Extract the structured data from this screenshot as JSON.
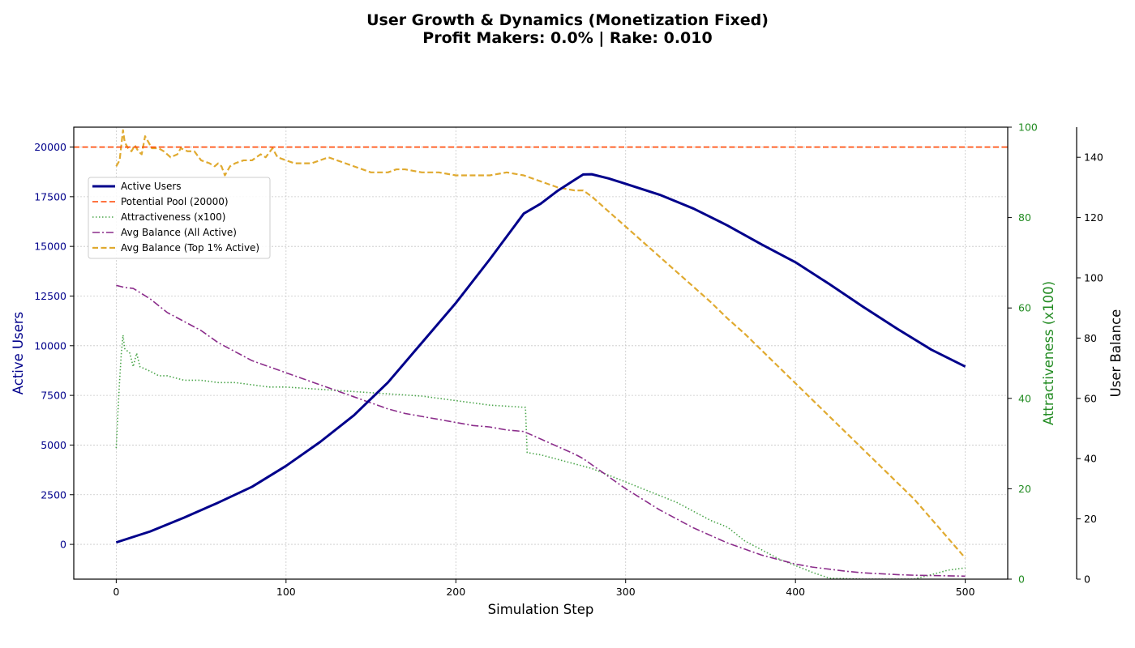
{
  "title_line1": "User Growth & Dynamics (Monetization Fixed)",
  "title_line2": "Profit Makers: 0.0% | Rake: 0.010",
  "chart_data": {
    "type": "line",
    "title": "User Growth & Dynamics (Monetization Fixed)\nProfit Makers: 0.0% | Rake: 0.010",
    "xlabel": "Simulation Step",
    "xlim": [
      -25,
      525
    ],
    "x_ticks": [
      0,
      100,
      200,
      300,
      400,
      500
    ],
    "axes": {
      "left": {
        "label": "Active Users",
        "color": "#00008b",
        "lim": [
          -1750,
          21000
        ],
        "ticks": [
          0,
          2500,
          5000,
          7500,
          10000,
          12500,
          15000,
          17500,
          20000
        ]
      },
      "right1": {
        "label": "Attractiveness (x100)",
        "color": "#228b22",
        "lim": [
          0,
          100
        ],
        "ticks": [
          0,
          20,
          40,
          60,
          80,
          100
        ]
      },
      "right2": {
        "label": "User Balance",
        "color": "#000000",
        "lim": [
          0,
          150
        ],
        "ticks": [
          0,
          20,
          40,
          60,
          80,
          100,
          120,
          140
        ]
      }
    },
    "grid": true,
    "legend_position": "upper-left",
    "series": [
      {
        "name": "Active Users",
        "axis": "left",
        "color": "#00008b",
        "style": "solid",
        "width": 3,
        "points": [
          [
            0,
            100
          ],
          [
            20,
            650
          ],
          [
            40,
            1350
          ],
          [
            60,
            2100
          ],
          [
            80,
            2900
          ],
          [
            100,
            3950
          ],
          [
            120,
            5150
          ],
          [
            140,
            6500
          ],
          [
            160,
            8150
          ],
          [
            180,
            10150
          ],
          [
            200,
            12150
          ],
          [
            220,
            14350
          ],
          [
            240,
            16650
          ],
          [
            250,
            17150
          ],
          [
            260,
            17800
          ],
          [
            270,
            18350
          ],
          [
            275,
            18620
          ],
          [
            280,
            18630
          ],
          [
            290,
            18420
          ],
          [
            300,
            18150
          ],
          [
            320,
            17600
          ],
          [
            340,
            16900
          ],
          [
            360,
            16050
          ],
          [
            380,
            15100
          ],
          [
            400,
            14200
          ],
          [
            420,
            13100
          ],
          [
            440,
            11950
          ],
          [
            460,
            10850
          ],
          [
            480,
            9800
          ],
          [
            500,
            8950
          ]
        ]
      },
      {
        "name": "Potential Pool (20000)",
        "axis": "left",
        "color": "#ff4500",
        "style": "dashed",
        "width": 1.6,
        "points": [
          [
            -25,
            20000
          ],
          [
            525,
            20000
          ]
        ]
      },
      {
        "name": "Attractiveness (x100)",
        "axis": "right1",
        "color": "#4ca64c",
        "style": "dotted",
        "width": 1.6,
        "points": [
          [
            0,
            29
          ],
          [
            1,
            37
          ],
          [
            2,
            44
          ],
          [
            3,
            50
          ],
          [
            4,
            54
          ],
          [
            5,
            51
          ],
          [
            8,
            50
          ],
          [
            10,
            47
          ],
          [
            12,
            50
          ],
          [
            14,
            47
          ],
          [
            20,
            46
          ],
          [
            25,
            45
          ],
          [
            30,
            45
          ],
          [
            40,
            44
          ],
          [
            50,
            44
          ],
          [
            60,
            43.5
          ],
          [
            70,
            43.5
          ],
          [
            80,
            43
          ],
          [
            90,
            42.5
          ],
          [
            100,
            42.5
          ],
          [
            120,
            42
          ],
          [
            140,
            41.5
          ],
          [
            160,
            41
          ],
          [
            180,
            40.5
          ],
          [
            200,
            39.5
          ],
          [
            220,
            38.5
          ],
          [
            241,
            38
          ],
          [
            242,
            28
          ],
          [
            250,
            27.5
          ],
          [
            260,
            26.5
          ],
          [
            270,
            25.5
          ],
          [
            280,
            24.5
          ],
          [
            290,
            23
          ],
          [
            300,
            21.5
          ],
          [
            310,
            20
          ],
          [
            320,
            18.5
          ],
          [
            330,
            17
          ],
          [
            340,
            15
          ],
          [
            350,
            13
          ],
          [
            360,
            11.5
          ],
          [
            370,
            8.5
          ],
          [
            380,
            6.5
          ],
          [
            390,
            4.5
          ],
          [
            400,
            3
          ],
          [
            410,
            1.5
          ],
          [
            420,
            0.2
          ],
          [
            440,
            0
          ],
          [
            460,
            0
          ],
          [
            470,
            0
          ],
          [
            480,
            1
          ],
          [
            490,
            2
          ],
          [
            500,
            2.5
          ]
        ]
      },
      {
        "name": "Avg Balance (All Active)",
        "axis": "right2",
        "color": "#8b2d8b",
        "style": "dashdot",
        "width": 1.6,
        "points": [
          [
            0,
            97.5
          ],
          [
            5,
            96.8
          ],
          [
            10,
            96.5
          ],
          [
            20,
            93
          ],
          [
            30,
            88.5
          ],
          [
            40,
            85.5
          ],
          [
            50,
            82.5
          ],
          [
            60,
            78.5
          ],
          [
            70,
            75.5
          ],
          [
            80,
            72.5
          ],
          [
            90,
            70.5
          ],
          [
            100,
            68.5
          ],
          [
            110,
            66.5
          ],
          [
            120,
            64.5
          ],
          [
            130,
            62.5
          ],
          [
            140,
            60.5
          ],
          [
            150,
            58.5
          ],
          [
            160,
            56.5
          ],
          [
            170,
            55
          ],
          [
            180,
            54
          ],
          [
            190,
            53
          ],
          [
            200,
            52
          ],
          [
            210,
            51
          ],
          [
            220,
            50.5
          ],
          [
            230,
            49.5
          ],
          [
            240,
            49
          ],
          [
            250,
            46.5
          ],
          [
            260,
            44
          ],
          [
            270,
            41.5
          ],
          [
            275,
            40
          ],
          [
            280,
            38
          ],
          [
            290,
            34
          ],
          [
            300,
            30
          ],
          [
            310,
            26.5
          ],
          [
            320,
            23
          ],
          [
            330,
            20
          ],
          [
            340,
            17
          ],
          [
            350,
            14.5
          ],
          [
            360,
            12
          ],
          [
            370,
            10
          ],
          [
            380,
            8
          ],
          [
            390,
            6.5
          ],
          [
            400,
            5
          ],
          [
            410,
            4
          ],
          [
            420,
            3.3
          ],
          [
            430,
            2.6
          ],
          [
            440,
            2.1
          ],
          [
            450,
            1.8
          ],
          [
            460,
            1.5
          ],
          [
            470,
            1.3
          ],
          [
            480,
            1.2
          ],
          [
            490,
            1.1
          ],
          [
            500,
            1
          ]
        ]
      },
      {
        "name": "Avg Balance (Top 1% Active)",
        "axis": "right2",
        "color": "#e0aa30",
        "style": "dashed",
        "width": 2.2,
        "points": [
          [
            0,
            137
          ],
          [
            2,
            139
          ],
          [
            3,
            144
          ],
          [
            4,
            149
          ],
          [
            5,
            145
          ],
          [
            7,
            143
          ],
          [
            9,
            142
          ],
          [
            11,
            144
          ],
          [
            13,
            142
          ],
          [
            15,
            141
          ],
          [
            17,
            147
          ],
          [
            19,
            145
          ],
          [
            21,
            143
          ],
          [
            25,
            143
          ],
          [
            28,
            142
          ],
          [
            32,
            140
          ],
          [
            36,
            141
          ],
          [
            38,
            143
          ],
          [
            42,
            142
          ],
          [
            46,
            142
          ],
          [
            50,
            139
          ],
          [
            55,
            138
          ],
          [
            58,
            137
          ],
          [
            60,
            138
          ],
          [
            62,
            137
          ],
          [
            64,
            134
          ],
          [
            67,
            137
          ],
          [
            70,
            138
          ],
          [
            75,
            139
          ],
          [
            80,
            139
          ],
          [
            85,
            141
          ],
          [
            88,
            140
          ],
          [
            92,
            143
          ],
          [
            95,
            140
          ],
          [
            100,
            139
          ],
          [
            105,
            138
          ],
          [
            110,
            138
          ],
          [
            115,
            138
          ],
          [
            120,
            139
          ],
          [
            125,
            140
          ],
          [
            130,
            139
          ],
          [
            135,
            138
          ],
          [
            140,
            137
          ],
          [
            145,
            136
          ],
          [
            150,
            135
          ],
          [
            155,
            135
          ],
          [
            160,
            135
          ],
          [
            165,
            136
          ],
          [
            170,
            136
          ],
          [
            180,
            135
          ],
          [
            190,
            135
          ],
          [
            200,
            134
          ],
          [
            210,
            134
          ],
          [
            220,
            134
          ],
          [
            230,
            135
          ],
          [
            240,
            134
          ],
          [
            250,
            132
          ],
          [
            260,
            130
          ],
          [
            270,
            129
          ],
          [
            275,
            129
          ],
          [
            280,
            127
          ],
          [
            290,
            122
          ],
          [
            300,
            117
          ],
          [
            310,
            112
          ],
          [
            320,
            107
          ],
          [
            330,
            102
          ],
          [
            340,
            97
          ],
          [
            350,
            92
          ],
          [
            360,
            86.5
          ],
          [
            370,
            81.5
          ],
          [
            380,
            76
          ],
          [
            390,
            70.5
          ],
          [
            400,
            65
          ],
          [
            410,
            59.5
          ],
          [
            420,
            54
          ],
          [
            430,
            48.5
          ],
          [
            440,
            43
          ],
          [
            450,
            37.5
          ],
          [
            460,
            32
          ],
          [
            470,
            26.5
          ],
          [
            480,
            20
          ],
          [
            490,
            13.5
          ],
          [
            500,
            7
          ]
        ]
      }
    ]
  }
}
